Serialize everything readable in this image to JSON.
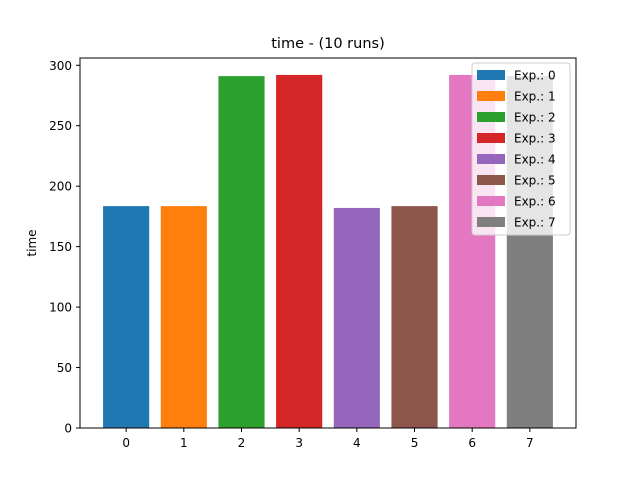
{
  "chart_data": {
    "type": "bar",
    "title": "time - (10 runs)",
    "xlabel": "",
    "ylabel": "time",
    "categories": [
      "0",
      "1",
      "2",
      "3",
      "4",
      "5",
      "6",
      "7"
    ],
    "values": [
      183.5,
      183.5,
      291,
      292,
      182,
      183.5,
      292,
      291
    ],
    "ylim": [
      0,
      306
    ],
    "yticks": [
      0,
      50,
      100,
      150,
      200,
      250,
      300
    ],
    "colors": [
      "#1f77b4",
      "#ff7f0e",
      "#2ca02c",
      "#d62728",
      "#9467bd",
      "#8c564b",
      "#e377c2",
      "#7f7f7f"
    ],
    "legend": {
      "placement": "upper-right",
      "entries": [
        "Exp.: 0",
        "Exp.: 1",
        "Exp.: 2",
        "Exp.: 3",
        "Exp.: 4",
        "Exp.: 5",
        "Exp.: 6",
        "Exp.: 7"
      ]
    },
    "grid": false
  }
}
